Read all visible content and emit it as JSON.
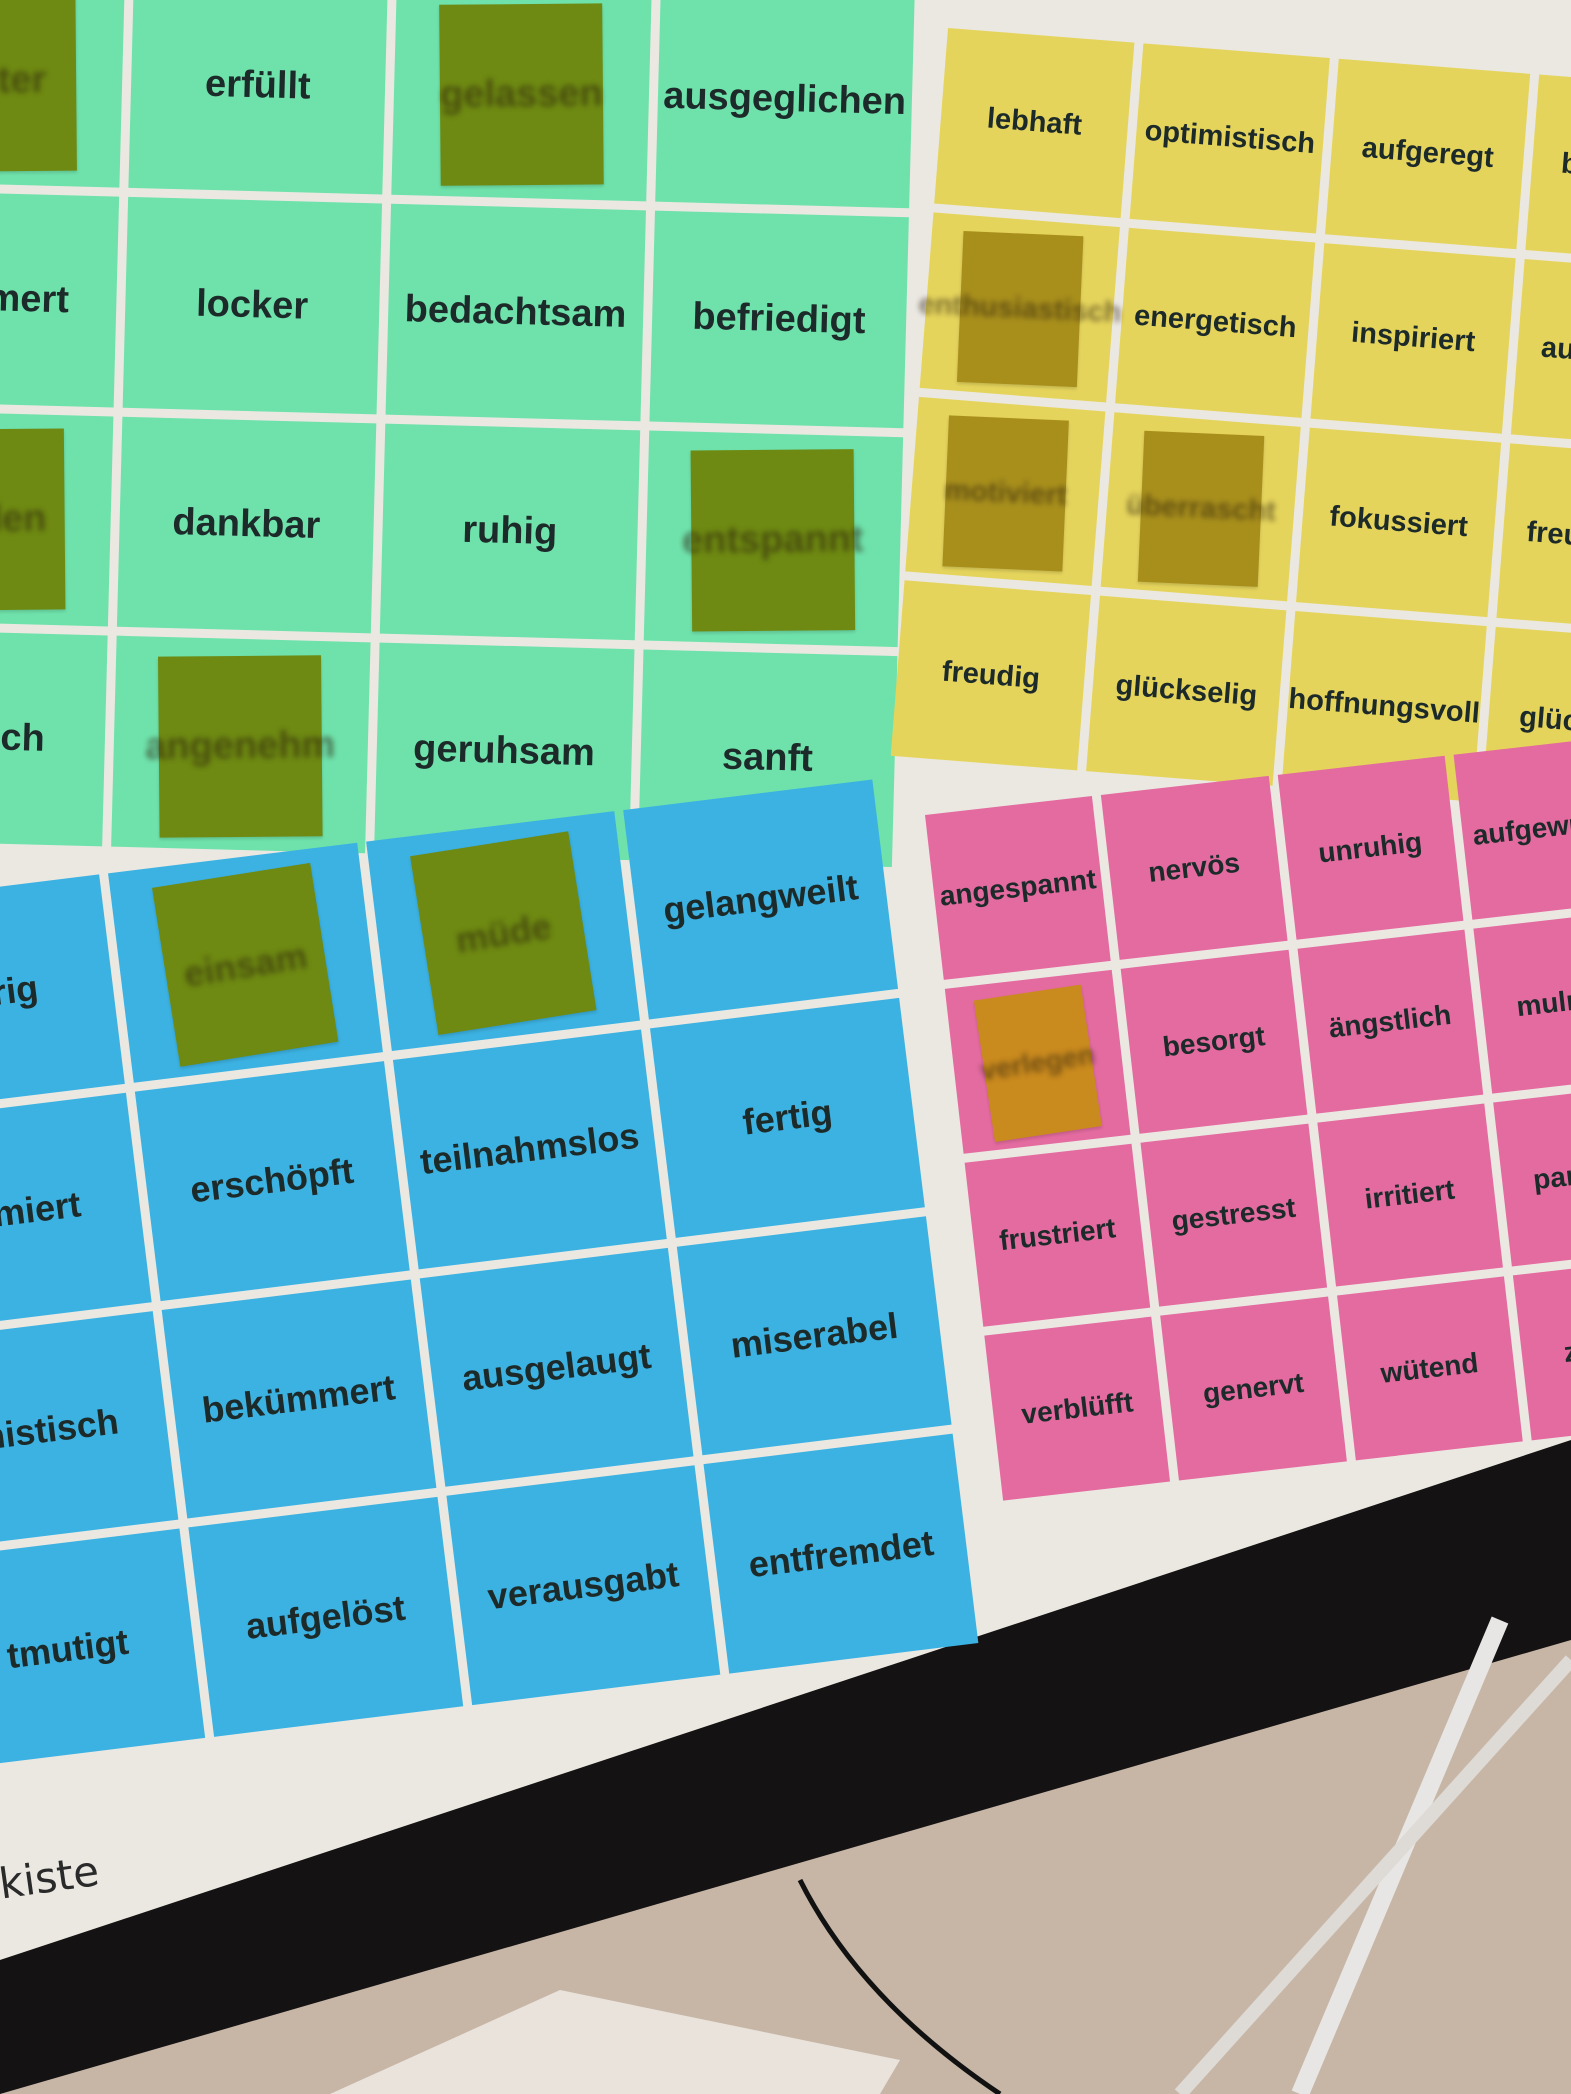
{
  "colors": {
    "screen": "#ebe8e2",
    "bezel": "#141212",
    "floor": "#c7b6a6",
    "green_cell": "#6fe2ab",
    "yellow_cell": "#e5d45c",
    "blue_cell": "#3cb2e2",
    "pink_cell": "#e46ba0",
    "green_note": "#6e8a12",
    "yellow_note": "#a88f1c",
    "orange_note": "#c98a1e"
  },
  "quadrants": [
    {
      "id": "green",
      "cells": [
        {
          "label": "heiter",
          "note": "green_note"
        },
        {
          "label": "erfüllt"
        },
        {
          "label": "gelassen",
          "note": "green_note"
        },
        {
          "label": "ausgeglichen"
        },
        {
          "label": "kümmert"
        },
        {
          "label": "locker"
        },
        {
          "label": "bedachtsam"
        },
        {
          "label": "befriedigt"
        },
        {
          "label": "frieden",
          "note": "green_note"
        },
        {
          "label": "dankbar"
        },
        {
          "label": "ruhig"
        },
        {
          "label": "entspannt",
          "note": "green_note"
        },
        {
          "label": "mütlich"
        },
        {
          "label": "angenehm",
          "note": "green_note"
        },
        {
          "label": "geruhsam"
        },
        {
          "label": "sanft"
        }
      ]
    },
    {
      "id": "yellow",
      "cells": [
        {
          "label": "lebhaft"
        },
        {
          "label": "optimistisch"
        },
        {
          "label": "aufgeregt"
        },
        {
          "label": "begeister"
        },
        {
          "label": "enthusiastisch",
          "note": "yellow_note"
        },
        {
          "label": "energetisch"
        },
        {
          "label": "inspiriert"
        },
        {
          "label": "aufgedreh"
        },
        {
          "label": "motiviert",
          "note": "yellow_note"
        },
        {
          "label": "überrascht",
          "note": "yellow_note"
        },
        {
          "label": "fokussiert"
        },
        {
          "label": "freundlich"
        },
        {
          "label": "freudig"
        },
        {
          "label": "glückselig"
        },
        {
          "label": "hoffnungsvoll"
        },
        {
          "label": "glücklich"
        }
      ]
    },
    {
      "id": "blue",
      "cells": [
        {
          "label": "raurig"
        },
        {
          "label": "einsam",
          "note": "green_note"
        },
        {
          "label": "müde",
          "note": "green_note"
        },
        {
          "label": "gelangweilt"
        },
        {
          "label": "primiert"
        },
        {
          "label": "erschöpft"
        },
        {
          "label": "teilnahmslos"
        },
        {
          "label": "fertig"
        },
        {
          "label": "imistisch"
        },
        {
          "label": "bekümmert"
        },
        {
          "label": "ausgelaugt"
        },
        {
          "label": "miserabel"
        },
        {
          "label": "tmutigt"
        },
        {
          "label": "aufgelöst"
        },
        {
          "label": "verausgabt"
        },
        {
          "label": "entfremdet"
        }
      ]
    },
    {
      "id": "pink",
      "cells": [
        {
          "label": "angespannt"
        },
        {
          "label": "nervös"
        },
        {
          "label": "unruhig"
        },
        {
          "label": "aufgewühlt"
        },
        {
          "label": "verlegen",
          "note": "orange_note"
        },
        {
          "label": "besorgt"
        },
        {
          "label": "ängstlich"
        },
        {
          "label": "mulmig"
        },
        {
          "label": "frustriert"
        },
        {
          "label": "gestresst"
        },
        {
          "label": "irritiert"
        },
        {
          "label": "panisch"
        },
        {
          "label": "verblüfft"
        },
        {
          "label": "genervt"
        },
        {
          "label": "wütend"
        },
        {
          "label": "zornig"
        }
      ]
    }
  ],
  "footer": {
    "caption": "kiste"
  }
}
